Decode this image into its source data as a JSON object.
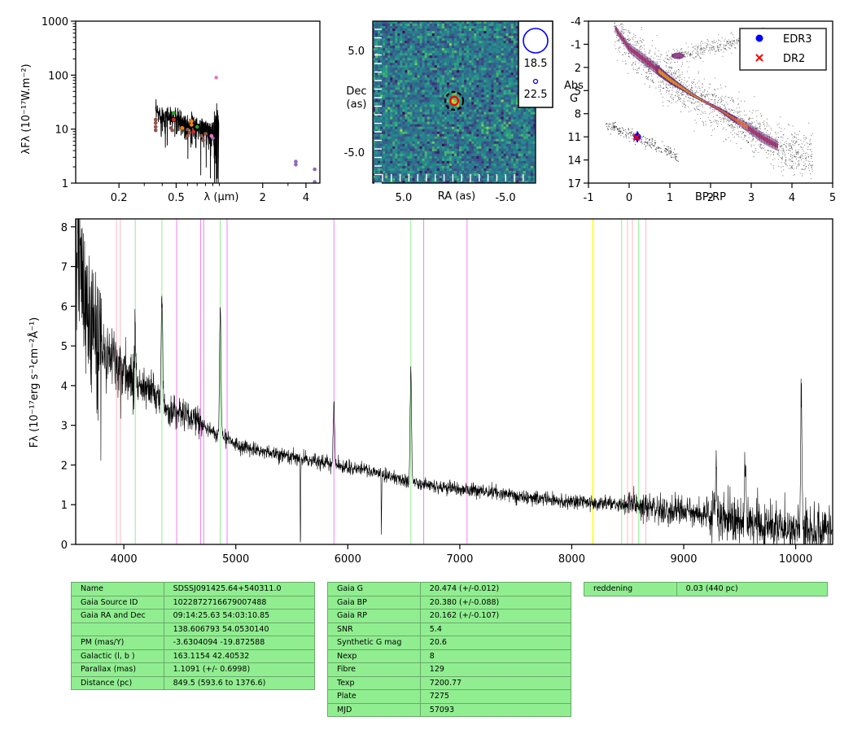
{
  "sed": {
    "ylabel": "λFλ (10⁻¹⁷W.m⁻²)",
    "xlabel": "λ (μm)",
    "xticks": [
      "0.2",
      "0.5",
      "2",
      "4"
    ],
    "yticks": [
      "1",
      "10",
      "100",
      "1000"
    ]
  },
  "image": {
    "xlabel": "RA (as)",
    "ylabel_line1": "Dec",
    "ylabel_line2": "(as)",
    "xticks": [
      "5.0",
      "-5.0"
    ],
    "yticks": [
      "5.0",
      "-5.0"
    ],
    "legend": [
      "18.5",
      "22.5"
    ]
  },
  "hrd": {
    "xlabel": "BP-RP",
    "ylabel_line1": "Abs",
    "ylabel_line2": "G",
    "xticks": [
      "-1",
      "0",
      "1",
      "2",
      "3",
      "4",
      "5"
    ],
    "yticks": [
      "-4",
      "-1",
      "2",
      "5",
      "8",
      "11",
      "14",
      "17"
    ],
    "legend": [
      {
        "label": "EDR3",
        "color": "#0000ff",
        "marker": "circle"
      },
      {
        "label": "DR2",
        "color": "#ff0000",
        "marker": "x"
      }
    ]
  },
  "spectrum": {
    "ylabel": "Fλ (10⁻¹⁷erg s⁻¹cm⁻²Å⁻¹)",
    "xticks": [
      "4000",
      "5000",
      "6000",
      "7000",
      "8000",
      "9000",
      "10000"
    ],
    "yticks": [
      "0",
      "1",
      "2",
      "3",
      "4",
      "5",
      "6",
      "7",
      "8"
    ]
  },
  "chart_data": [
    {
      "type": "scatter",
      "panel": "sed",
      "xscale": "log",
      "yscale": "log",
      "xlim": [
        0.1,
        5.0
      ],
      "ylim": [
        1,
        1000
      ],
      "points": [
        {
          "x": 0.36,
          "y": 15,
          "color": "#8c564b"
        },
        {
          "x": 0.36,
          "y": 13,
          "color": "#8c564b"
        },
        {
          "x": 0.36,
          "y": 11,
          "color": "#8c564b"
        },
        {
          "x": 0.36,
          "y": 9.5,
          "color": "#8c564b"
        },
        {
          "x": 0.46,
          "y": 10.5,
          "color": "#8c564b"
        },
        {
          "x": 0.47,
          "y": 9.5,
          "color": "#8c564b"
        },
        {
          "x": 0.48,
          "y": 20,
          "color": "#2ca02c"
        },
        {
          "x": 0.48,
          "y": 15,
          "color": "#d62728"
        },
        {
          "x": 0.55,
          "y": 10.5,
          "color": "#ff7f0e"
        },
        {
          "x": 0.6,
          "y": 9.8,
          "color": "#8c564b"
        },
        {
          "x": 0.6,
          "y": 7.5,
          "color": "#8c564b"
        },
        {
          "x": 0.62,
          "y": 8.5,
          "color": "#8c564b"
        },
        {
          "x": 0.64,
          "y": 14,
          "color": "#ff7f0e"
        },
        {
          "x": 0.64,
          "y": 12,
          "color": "#ff7f0e"
        },
        {
          "x": 0.66,
          "y": 9,
          "color": "#d62728"
        },
        {
          "x": 0.7,
          "y": 11,
          "color": "#2ca02c"
        },
        {
          "x": 0.75,
          "y": 7.5,
          "color": "#8c564b"
        },
        {
          "x": 0.77,
          "y": 6.2,
          "color": "#8c564b"
        },
        {
          "x": 0.8,
          "y": 8.2,
          "color": "#8c564b"
        },
        {
          "x": 0.9,
          "y": 6.8,
          "color": "#9467bd"
        },
        {
          "x": 0.88,
          "y": 7.5,
          "color": "#e377c2"
        },
        {
          "x": 0.95,
          "y": 90,
          "color": "#e377c2"
        },
        {
          "x": 3.4,
          "y": 2.5,
          "color": "#9467bd"
        },
        {
          "x": 3.4,
          "y": 2.2,
          "color": "#9467bd"
        },
        {
          "x": 4.6,
          "y": 1.8,
          "color": "#9467bd"
        },
        {
          "x": 4.6,
          "y": 1.05,
          "color": "#9467bd"
        }
      ]
    },
    {
      "type": "heatmap",
      "panel": "image",
      "xlim": [
        10,
        -10
      ],
      "ylim": [
        -10,
        10
      ],
      "target": {
        "ra": 0,
        "dec": 0
      }
    },
    {
      "type": "scatter",
      "panel": "hrd",
      "xlim": [
        -1,
        5
      ],
      "ylim": [
        17,
        -4
      ],
      "series": [
        {
          "name": "EDR3",
          "points": [
            {
              "x": 0.2,
              "y": 11.0,
              "yerr": 0.7
            }
          ]
        },
        {
          "name": "DR2",
          "points": [
            {
              "x": 0.18,
              "y": 11.1
            }
          ]
        }
      ]
    },
    {
      "type": "line",
      "panel": "spectrum",
      "xlim": [
        3570,
        10330
      ],
      "ylim": [
        0,
        8.2
      ],
      "anchors": [
        [
          3570,
          7.5
        ],
        [
          3650,
          6.0
        ],
        [
          3720,
          5.3
        ],
        [
          3800,
          4.9
        ],
        [
          3900,
          4.6
        ],
        [
          4000,
          4.3
        ],
        [
          4100,
          4.0
        ],
        [
          4200,
          3.9
        ],
        [
          4300,
          3.7
        ],
        [
          4400,
          3.4
        ],
        [
          4500,
          3.3
        ],
        [
          4600,
          3.2
        ],
        [
          4700,
          3.0
        ],
        [
          4800,
          2.8
        ],
        [
          4900,
          2.7
        ],
        [
          5000,
          2.5
        ],
        [
          5200,
          2.35
        ],
        [
          5400,
          2.25
        ],
        [
          5600,
          2.15
        ],
        [
          5800,
          2.05
        ],
        [
          6000,
          1.95
        ],
        [
          6200,
          1.85
        ],
        [
          6400,
          1.7
        ],
        [
          6500,
          1.6
        ],
        [
          6700,
          1.5
        ],
        [
          7000,
          1.4
        ],
        [
          7300,
          1.3
        ],
        [
          7600,
          1.2
        ],
        [
          7900,
          1.1
        ],
        [
          8200,
          1.05
        ],
        [
          8500,
          1.0
        ],
        [
          8800,
          0.9
        ],
        [
          9100,
          0.8
        ],
        [
          9400,
          0.65
        ],
        [
          9700,
          0.5
        ],
        [
          10000,
          0.4
        ],
        [
          10330,
          0.3
        ]
      ],
      "emission": [
        [
          4101,
          1.5
        ],
        [
          4340,
          2.8
        ],
        [
          4861,
          3.3
        ],
        [
          5876,
          1.6
        ],
        [
          6563,
          2.9
        ],
        [
          10050,
          3.5
        ],
        [
          9290,
          1.5
        ],
        [
          9550,
          1.7
        ]
      ],
      "absorption": [
        [
          5577,
          -2.3
        ],
        [
          6300,
          -1.6
        ]
      ],
      "vlines": [
        {
          "x": 3934,
          "color": "#ffb6c1"
        },
        {
          "x": 3968,
          "color": "#ffb6c1"
        },
        {
          "x": 4102,
          "color": "#90ee90"
        },
        {
          "x": 4340,
          "color": "#90ee90"
        },
        {
          "x": 4471,
          "color": "#ee82ee"
        },
        {
          "x": 4686,
          "color": "#ee82ee"
        },
        {
          "x": 4713,
          "color": "#ee82ee"
        },
        {
          "x": 4861,
          "color": "#90ee90"
        },
        {
          "x": 4922,
          "color": "#ee82ee"
        },
        {
          "x": 5876,
          "color": "#ee82ee"
        },
        {
          "x": 6563,
          "color": "#90ee90"
        },
        {
          "x": 6678,
          "color": "#ee82ee"
        },
        {
          "x": 7065,
          "color": "#ee82ee"
        },
        {
          "x": 8190,
          "color": "#ffff00"
        },
        {
          "x": 8446,
          "color": "#90ee90"
        },
        {
          "x": 8498,
          "color": "#ffb6c1"
        },
        {
          "x": 8542,
          "color": "#ffb6c1"
        },
        {
          "x": 8598,
          "color": "#90ee90"
        },
        {
          "x": 8662,
          "color": "#ffb6c1"
        }
      ]
    }
  ],
  "tables": {
    "astrometry": [
      [
        "Name",
        "SDSSJ091425.64+540311.0"
      ],
      [
        "Gaia Source ID",
        "1022872716679007488"
      ],
      [
        "Gaia RA and Dec",
        "09:14:25.63    54:03:10.85"
      ],
      [
        "",
        "138.606793    54.0530140"
      ],
      [
        "PM (mas/Y)",
        "-3.6304094    -19.872588"
      ],
      [
        "Galactic (l, b )",
        "163.1154    42.40532"
      ],
      [
        "Parallax (mas)",
        "1.1091 (+/- 0.6998)"
      ],
      [
        "Distance (pc)",
        "849.5 (593.6 to 1376.6)"
      ]
    ],
    "photometry": [
      [
        "Gaia G",
        "20.474 (+/-0.012)"
      ],
      [
        "Gaia BP",
        "20.380 (+/-0.088)"
      ],
      [
        "Gaia RP",
        "20.162 (+/-0.107)"
      ],
      [
        "SNR",
        "5.4"
      ],
      [
        "Synthetic G mag",
        "20.6"
      ],
      [
        "Nexp",
        "8"
      ],
      [
        "Fibre",
        "129"
      ],
      [
        "Texp",
        "7200.77"
      ],
      [
        "Plate",
        "7275"
      ],
      [
        "MJD",
        "57093"
      ]
    ],
    "extinction": [
      [
        "reddening",
        "0.03 (440 pc)"
      ]
    ]
  }
}
